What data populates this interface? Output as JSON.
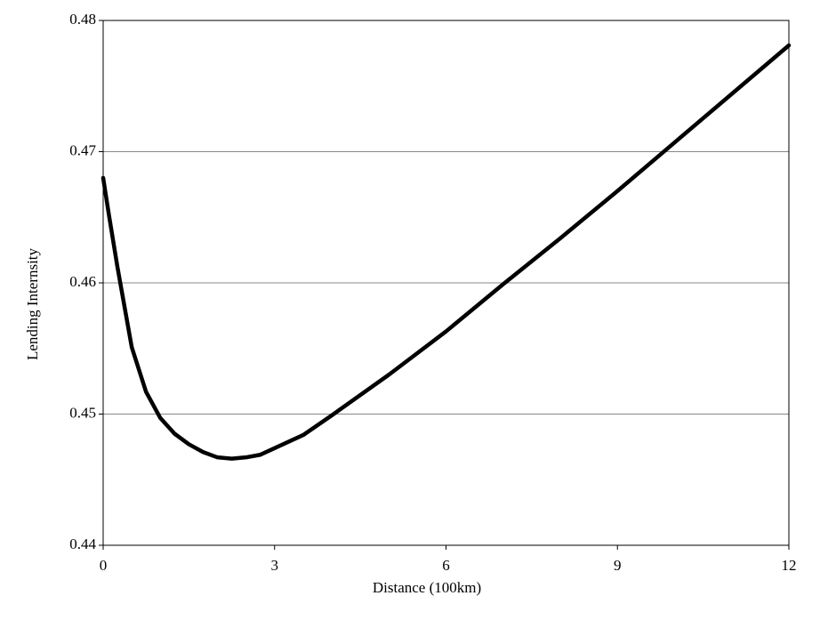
{
  "chart_data": {
    "type": "line",
    "x_label": "Distance (100km)",
    "y_label": "Lending Internsity",
    "x": [
      0,
      0.1,
      0.25,
      0.5,
      0.75,
      1,
      1.25,
      1.5,
      1.75,
      2,
      2.25,
      2.5,
      2.75,
      3,
      3.5,
      4,
      5,
      6,
      7,
      8,
      9,
      10,
      11,
      12
    ],
    "series": [
      {
        "name": "Lending Internsity",
        "color": "#000000",
        "values": [
          0.468,
          0.4652,
          0.4612,
          0.4551,
          0.4517,
          0.4497,
          0.4485,
          0.4477,
          0.4471,
          0.4467,
          0.4466,
          0.4467,
          0.4469,
          0.4474,
          0.4484,
          0.4499,
          0.453,
          0.4563,
          0.4599,
          0.4634,
          0.467,
          0.4707,
          0.4744,
          0.4781
        ]
      }
    ],
    "xlim": [
      0,
      12
    ],
    "xticks": [
      0,
      3,
      6,
      9,
      12
    ],
    "ylim": [
      0.44,
      0.48
    ],
    "yticks": [
      0.44,
      0.45,
      0.46,
      0.47,
      0.48
    ],
    "grid": true
  }
}
